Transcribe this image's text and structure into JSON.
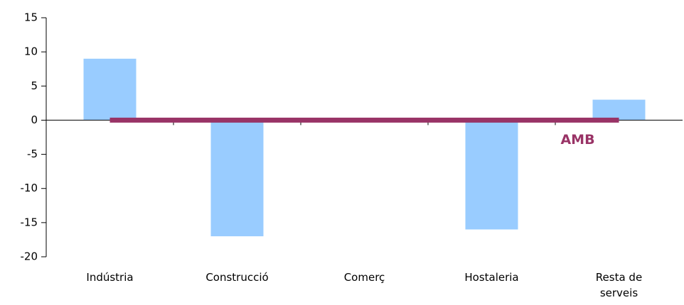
{
  "chart_data": {
    "type": "bar",
    "categories": [
      "Indústria",
      "Construcció",
      "Comerç",
      "Hostaleria",
      "Resta de serveis"
    ],
    "values": [
      9,
      -17,
      0,
      -16,
      3
    ],
    "color": "#99ccff",
    "line_series": {
      "name": "AMB",
      "color": "#993366",
      "values": [
        0,
        0,
        0,
        0,
        0
      ]
    },
    "ylim": [
      -20,
      15
    ],
    "yticks": [
      -20,
      -15,
      -10,
      -5,
      0,
      5,
      10,
      15
    ],
    "grid": false
  }
}
